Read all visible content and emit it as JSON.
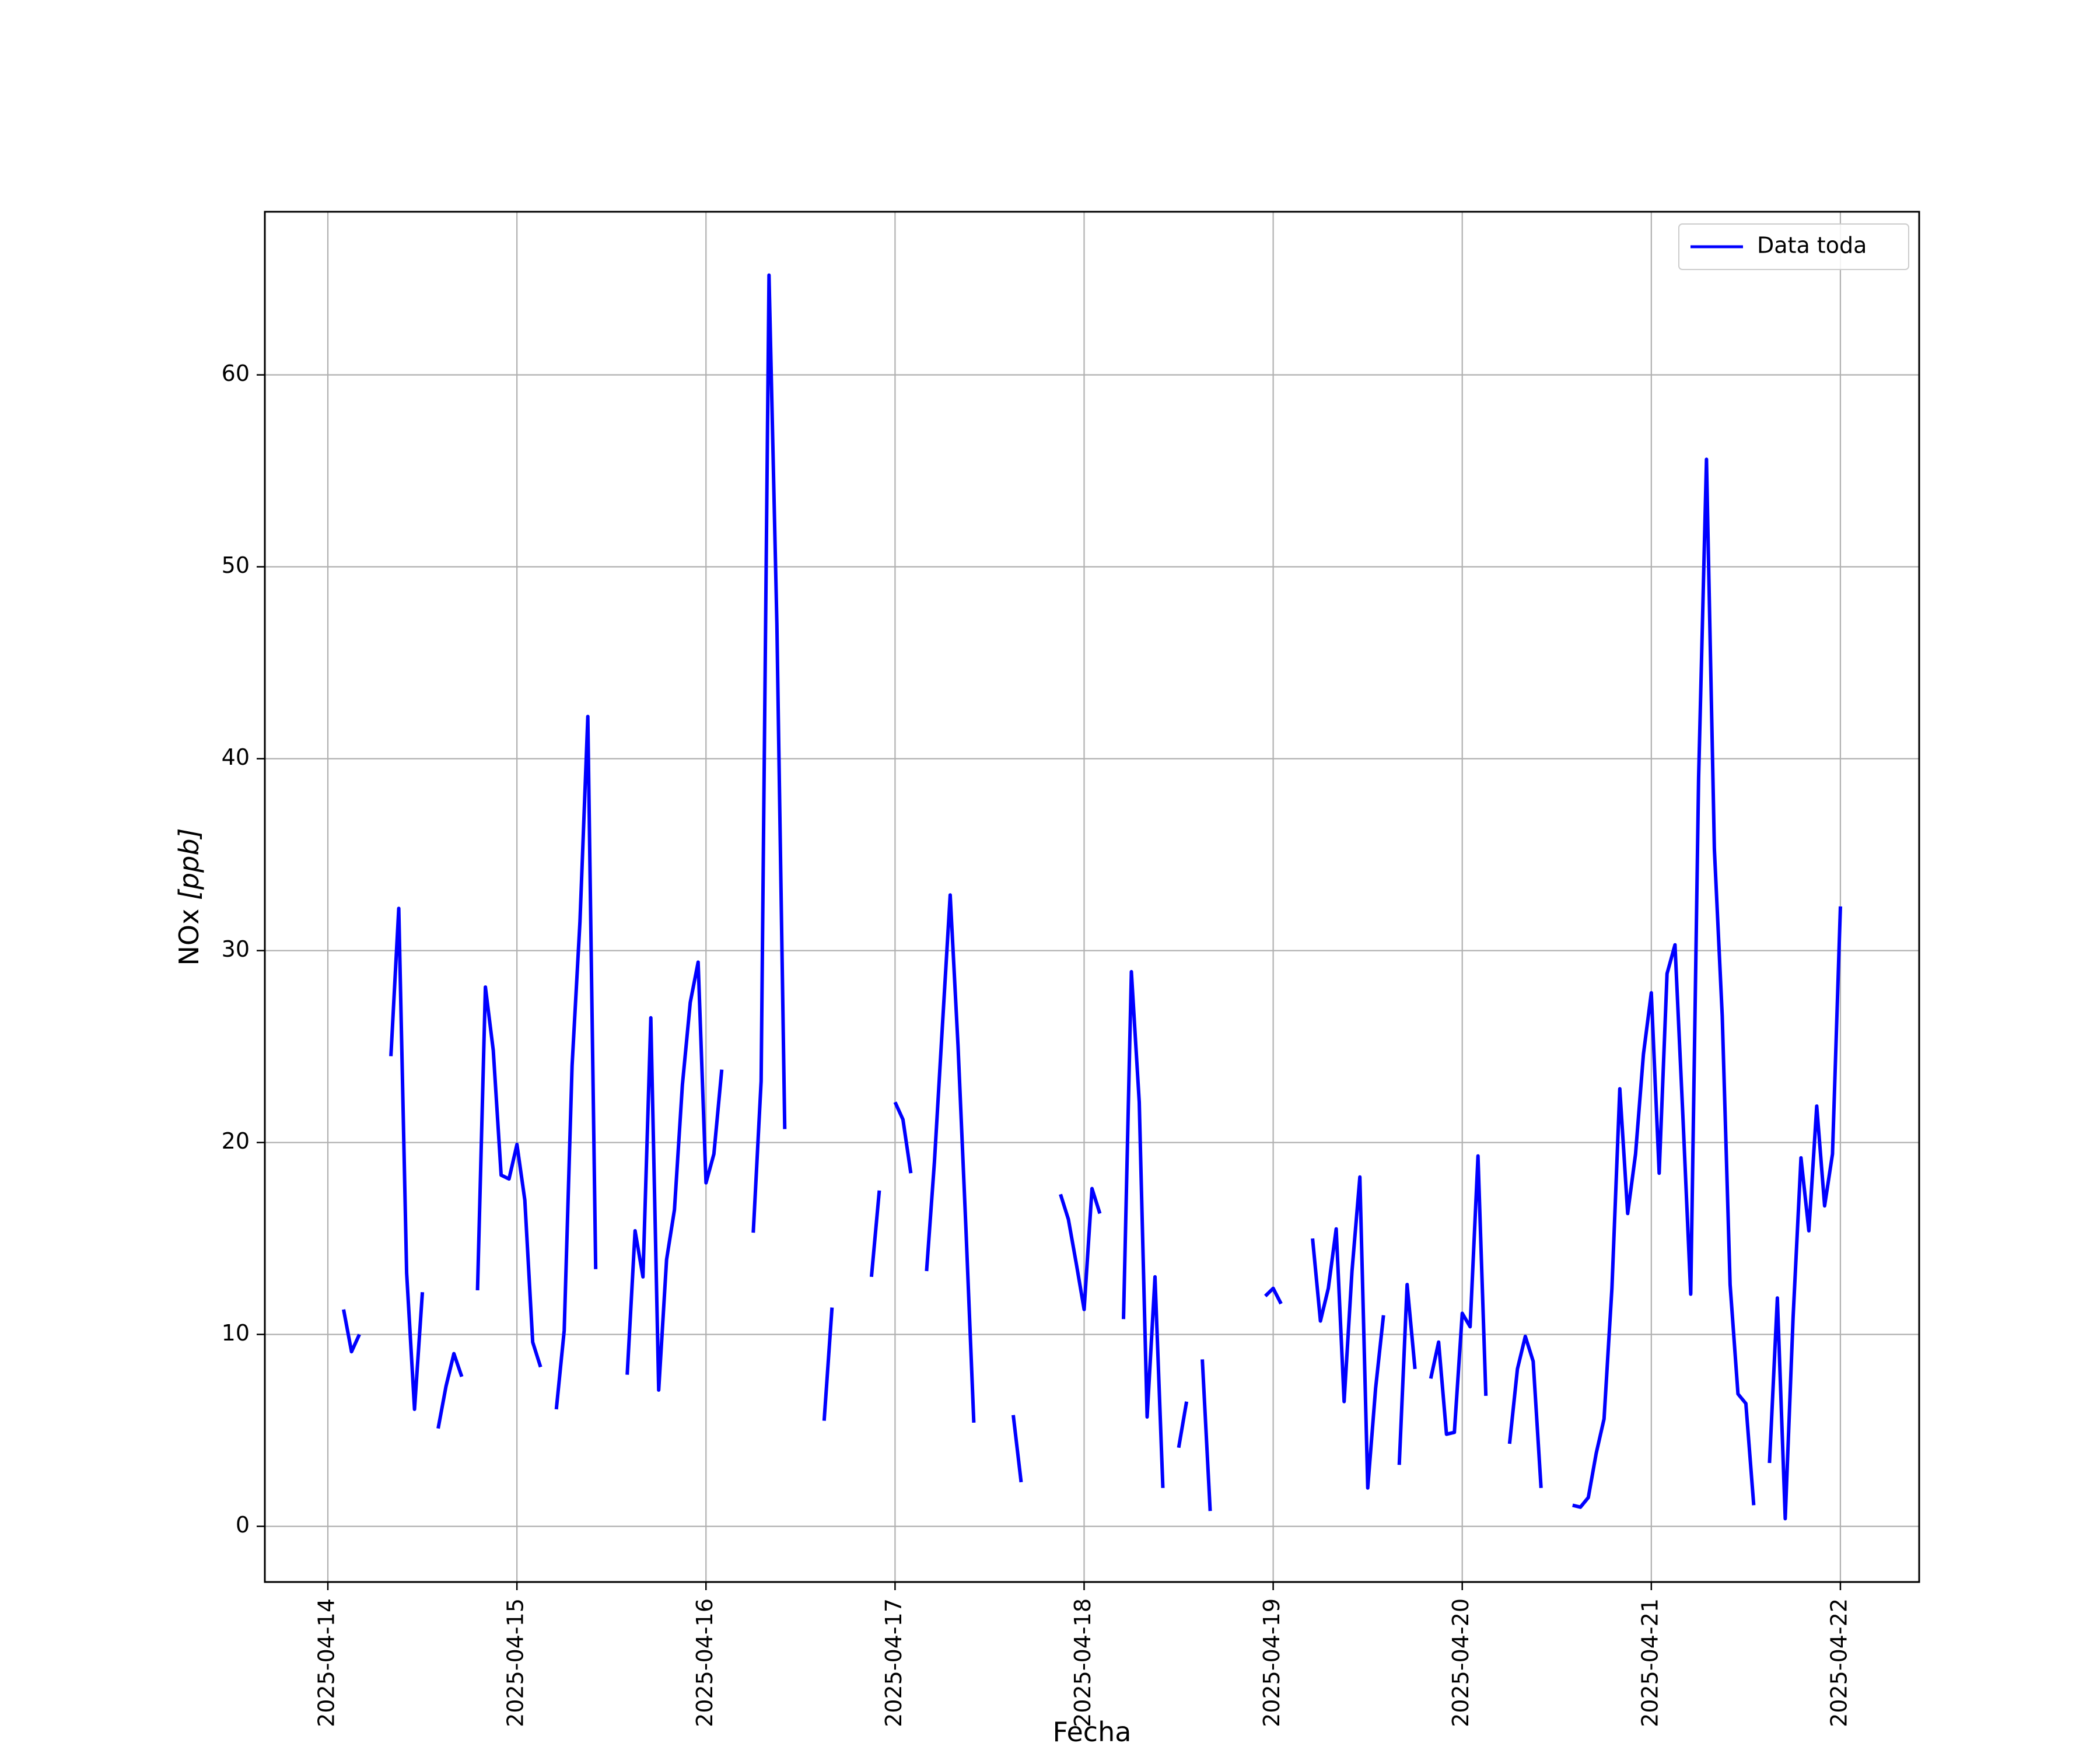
{
  "chart_data": {
    "type": "line",
    "xlabel": "Fecha",
    "ylabel_prefix": "NOx ",
    "ylabel_unit": "[ppb]",
    "legend_placement": "top-right",
    "grid": true,
    "x_ticks": [
      "2025-04-14",
      "2025-04-15",
      "2025-04-16",
      "2025-04-17",
      "2025-04-18",
      "2025-04-19",
      "2025-04-20",
      "2025-04-21",
      "2025-04-22"
    ],
    "y_ticks": [
      0,
      10,
      20,
      30,
      40,
      50,
      60
    ],
    "xlim": [
      "2025-04-13 16:00",
      "2025-04-22 10:00"
    ],
    "ylim": [
      -2.9,
      68.5
    ],
    "series": [
      {
        "name": "Data toda",
        "color": "#0000ff",
        "segments": [
          [
            [
              "2025-04-14 02:00",
              11.3
            ],
            [
              "2025-04-14 03:00",
              9.1
            ],
            [
              "2025-04-14 04:00",
              10.0
            ]
          ],
          [
            [
              "2025-04-14 08:00",
              24.5
            ],
            [
              "2025-04-14 09:00",
              32.2
            ],
            [
              "2025-04-14 10:00",
              13.2
            ],
            [
              "2025-04-14 11:00",
              6.1
            ],
            [
              "2025-04-14 12:00",
              12.2
            ]
          ],
          [
            [
              "2025-04-14 14:00",
              5.1
            ],
            [
              "2025-04-14 15:00",
              7.3
            ],
            [
              "2025-04-14 16:00",
              9.0
            ],
            [
              "2025-04-14 17:00",
              7.8
            ]
          ],
          [
            [
              "2025-04-14 19:00",
              12.3
            ],
            [
              "2025-04-14 20:00",
              28.1
            ],
            [
              "2025-04-14 21:00",
              24.8
            ],
            [
              "2025-04-14 22:00",
              18.3
            ],
            [
              "2025-04-14 23:00",
              18.1
            ],
            [
              "2025-04-15 00:00",
              19.9
            ],
            [
              "2025-04-15 01:00",
              17.0
            ],
            [
              "2025-04-15 02:00",
              9.6
            ],
            [
              "2025-04-15 03:00",
              8.3
            ]
          ],
          [
            [
              "2025-04-15 05:00",
              6.1
            ],
            [
              "2025-04-15 06:00",
              10.2
            ],
            [
              "2025-04-15 07:00",
              24.0
            ],
            [
              "2025-04-15 08:00",
              31.5
            ],
            [
              "2025-04-15 09:00",
              42.2
            ],
            [
              "2025-04-15 10:00",
              13.4
            ]
          ],
          [
            [
              "2025-04-15 14:00",
              7.9
            ],
            [
              "2025-04-15 15:00",
              15.4
            ],
            [
              "2025-04-15 16:00",
              13.0
            ],
            [
              "2025-04-15 17:00",
              26.5
            ],
            [
              "2025-04-15 18:00",
              7.1
            ],
            [
              "2025-04-15 19:00",
              13.9
            ],
            [
              "2025-04-15 20:00",
              16.5
            ],
            [
              "2025-04-15 21:00",
              23.0
            ],
            [
              "2025-04-15 22:00",
              27.3
            ],
            [
              "2025-04-15 23:00",
              29.4
            ],
            [
              "2025-04-16 00:00",
              17.9
            ],
            [
              "2025-04-16 01:00",
              19.4
            ],
            [
              "2025-04-16 02:00",
              23.8
            ]
          ],
          [
            [
              "2025-04-16 06:00",
              15.3
            ],
            [
              "2025-04-16 07:00",
              23.2
            ],
            [
              "2025-04-16 08:00",
              65.2
            ],
            [
              "2025-04-16 09:00",
              47.0
            ],
            [
              "2025-04-16 10:00",
              20.7
            ]
          ],
          [
            [
              "2025-04-16 15:00",
              5.5
            ],
            [
              "2025-04-16 16:00",
              11.4
            ]
          ],
          [
            [
              "2025-04-16 21:00",
              13.0
            ],
            [
              "2025-04-16 22:00",
              17.5
            ]
          ],
          [
            [
              "2025-04-17 00:00",
              22.1
            ],
            [
              "2025-04-17 01:00",
              21.2
            ],
            [
              "2025-04-17 02:00",
              18.4
            ]
          ],
          [
            [
              "2025-04-17 04:00",
              13.3
            ],
            [
              "2025-04-17 05:00",
              19.0
            ],
            [
              "2025-04-17 06:00",
              26.0
            ],
            [
              "2025-04-17 07:00",
              32.9
            ],
            [
              "2025-04-17 08:00",
              25.0
            ],
            [
              "2025-04-17 09:00",
              15.5
            ],
            [
              "2025-04-17 10:00",
              5.4
            ]
          ],
          [
            [
              "2025-04-17 15:00",
              5.8
            ],
            [
              "2025-04-17 16:00",
              2.3
            ]
          ],
          [
            [
              "2025-04-17 21:00",
              17.3
            ],
            [
              "2025-04-17 22:00",
              16.0
            ],
            [
              "2025-04-17 23:00",
              13.7
            ],
            [
              "2025-04-18 00:00",
              11.3
            ],
            [
              "2025-04-18 01:00",
              17.6
            ],
            [
              "2025-04-18 02:00",
              16.3
            ]
          ],
          [
            [
              "2025-04-18 05:00",
              10.8
            ],
            [
              "2025-04-18 06:00",
              28.9
            ],
            [
              "2025-04-18 07:00",
              22.1
            ],
            [
              "2025-04-18 08:00",
              5.7
            ],
            [
              "2025-04-18 09:00",
              13.0
            ],
            [
              "2025-04-18 10:00",
              2.0
            ]
          ],
          [
            [
              "2025-04-18 12:00",
              4.1
            ],
            [
              "2025-04-18 13:00",
              6.5
            ]
          ],
          [
            [
              "2025-04-18 15:00",
              8.7
            ],
            [
              "2025-04-18 16:00",
              0.8
            ]
          ],
          [
            [
              "2025-04-18 23:00",
              12.0
            ],
            [
              "2025-04-19 00:00",
              12.4
            ],
            [
              "2025-04-19 01:00",
              11.6
            ]
          ],
          [
            [
              "2025-04-19 05:00",
              15.0
            ],
            [
              "2025-04-19 06:00",
              10.7
            ],
            [
              "2025-04-19 07:00",
              12.4
            ],
            [
              "2025-04-19 08:00",
              15.5
            ],
            [
              "2025-04-19 09:00",
              6.5
            ],
            [
              "2025-04-19 10:00",
              13.3
            ],
            [
              "2025-04-19 11:00",
              18.2
            ],
            [
              "2025-04-19 12:00",
              2.0
            ],
            [
              "2025-04-19 13:00",
              7.2
            ],
            [
              "2025-04-19 14:00",
              11.0
            ]
          ],
          [
            [
              "2025-04-19 16:00",
              3.2
            ],
            [
              "2025-04-19 17:00",
              12.6
            ],
            [
              "2025-04-19 18:00",
              8.2
            ]
          ],
          [
            [
              "2025-04-19 20:00",
              7.7
            ],
            [
              "2025-04-19 21:00",
              9.6
            ],
            [
              "2025-04-19 22:00",
              4.8
            ],
            [
              "2025-04-19 23:00",
              4.9
            ],
            [
              "2025-04-20 00:00",
              11.1
            ],
            [
              "2025-04-20 01:00",
              10.4
            ],
            [
              "2025-04-20 02:00",
              19.3
            ],
            [
              "2025-04-20 03:00",
              6.8
            ]
          ],
          [
            [
              "2025-04-20 06:00",
              4.3
            ],
            [
              "2025-04-20 07:00",
              8.2
            ],
            [
              "2025-04-20 08:00",
              9.9
            ],
            [
              "2025-04-20 09:00",
              8.6
            ],
            [
              "2025-04-20 10:00",
              2.0
            ]
          ],
          [
            [
              "2025-04-20 14:00",
              1.1
            ],
            [
              "2025-04-20 15:00",
              1.0
            ],
            [
              "2025-04-20 16:00",
              1.5
            ],
            [
              "2025-04-20 17:00",
              3.8
            ],
            [
              "2025-04-20 18:00",
              5.6
            ],
            [
              "2025-04-20 19:00",
              12.4
            ],
            [
              "2025-04-20 20:00",
              22.8
            ],
            [
              "2025-04-20 21:00",
              16.3
            ],
            [
              "2025-04-20 22:00",
              19.4
            ],
            [
              "2025-04-20 23:00",
              24.6
            ],
            [
              "2025-04-21 00:00",
              27.8
            ],
            [
              "2025-04-21 01:00",
              18.4
            ],
            [
              "2025-04-21 02:00",
              28.8
            ],
            [
              "2025-04-21 03:00",
              30.3
            ],
            [
              "2025-04-21 04:00",
              21.4
            ],
            [
              "2025-04-21 05:00",
              12.1
            ],
            [
              "2025-04-21 06:00",
              39.0
            ],
            [
              "2025-04-21 07:00",
              55.6
            ],
            [
              "2025-04-21 08:00",
              35.3
            ],
            [
              "2025-04-21 09:00",
              26.6
            ],
            [
              "2025-04-21 10:00",
              12.6
            ],
            [
              "2025-04-21 11:00",
              6.9
            ],
            [
              "2025-04-21 12:00",
              6.4
            ],
            [
              "2025-04-21 13:00",
              1.1
            ]
          ],
          [
            [
              "2025-04-21 15:00",
              3.3
            ],
            [
              "2025-04-21 16:00",
              11.9
            ],
            [
              "2025-04-21 17:00",
              0.4
            ],
            [
              "2025-04-21 18:00",
              10.9
            ],
            [
              "2025-04-21 19:00",
              19.2
            ],
            [
              "2025-04-21 20:00",
              15.4
            ],
            [
              "2025-04-21 21:00",
              21.9
            ],
            [
              "2025-04-21 22:00",
              16.7
            ],
            [
              "2025-04-21 23:00",
              19.4
            ],
            [
              "2025-04-22 00:00",
              32.3
            ]
          ]
        ]
      }
    ]
  }
}
